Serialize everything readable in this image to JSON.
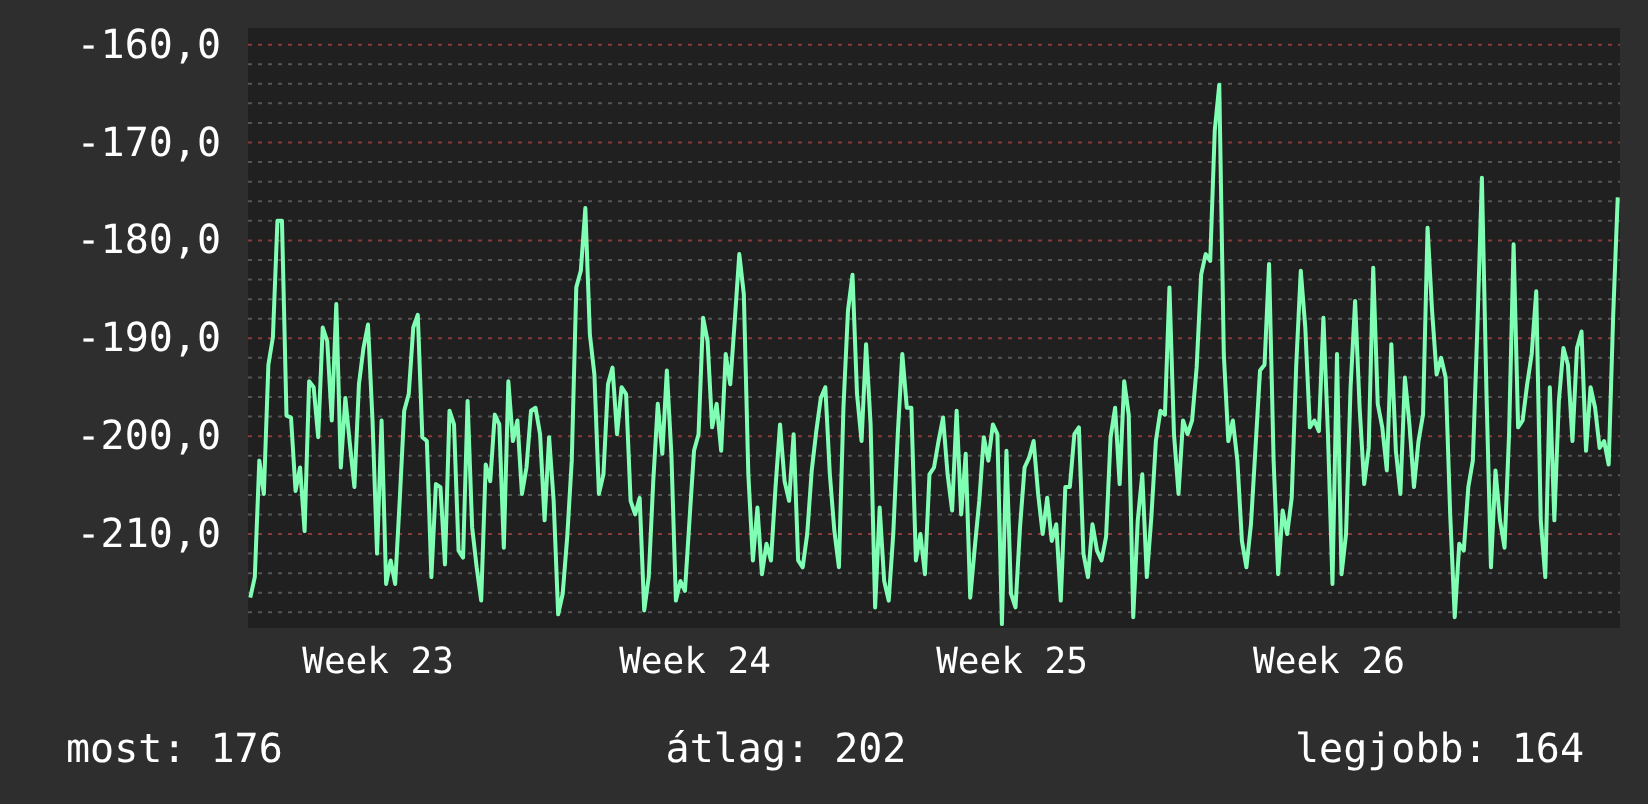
{
  "chart_data": {
    "type": "line",
    "categories": [
      null,
      null,
      null,
      null,
      null,
      null,
      null,
      null,
      null,
      null,
      null,
      null,
      null,
      null,
      null,
      null,
      null,
      null,
      null,
      null,
      null,
      null,
      null,
      null,
      null,
      null,
      null,
      null,
      "Week 23",
      null,
      null,
      null,
      null,
      null,
      null,
      null,
      null,
      null,
      null,
      null,
      null,
      null,
      null,
      null,
      null,
      null,
      null,
      null,
      null,
      null,
      null,
      null,
      null,
      null,
      null,
      null,
      null,
      null,
      null,
      null,
      null,
      null,
      null,
      null,
      null,
      null,
      null,
      null,
      null,
      null,
      null,
      null,
      null,
      null,
      null,
      null,
      null,
      null,
      null,
      null,
      null,
      null,
      null,
      null,
      null,
      null,
      null,
      null,
      null,
      null,
      null,
      null,
      null,
      null,
      null,
      null,
      null,
      null,
      "Week 24",
      null,
      null,
      null,
      null,
      null,
      null,
      null,
      null,
      null,
      null,
      null,
      null,
      null,
      null,
      null,
      null,
      null,
      null,
      null,
      null,
      null,
      null,
      null,
      null,
      null,
      null,
      null,
      null,
      null,
      null,
      null,
      null,
      null,
      null,
      null,
      null,
      null,
      null,
      null,
      null,
      null,
      null,
      null,
      null,
      null,
      null,
      null,
      null,
      null,
      null,
      null,
      null,
      null,
      null,
      null,
      null,
      null,
      null,
      null,
      null,
      null,
      null,
      null,
      null,
      null,
      null,
      null,
      null,
      null,
      "Week 25",
      null,
      null,
      null,
      null,
      null,
      null,
      null,
      null,
      null,
      null,
      null,
      null,
      null,
      null,
      null,
      null,
      null,
      null,
      null,
      null,
      null,
      null,
      null,
      null,
      null,
      null,
      null,
      null,
      null,
      null,
      null,
      null,
      null,
      null,
      null,
      null,
      null,
      null,
      null,
      null,
      null,
      null,
      null,
      null,
      null,
      null,
      null,
      null,
      null,
      null,
      null,
      null,
      null,
      null,
      null,
      null,
      null,
      null,
      null,
      null,
      null,
      null,
      null,
      null,
      null,
      null,
      null,
      null,
      null,
      "Week 26",
      null,
      null,
      null,
      null,
      null,
      null,
      null,
      null,
      null,
      null,
      null,
      null,
      null,
      null,
      null,
      null,
      null,
      null,
      null,
      null,
      null,
      null,
      null,
      null,
      null,
      null,
      null,
      null,
      null,
      null,
      null,
      null,
      null,
      null,
      null,
      null,
      null,
      null,
      null,
      null,
      null,
      null,
      null,
      null,
      null,
      null,
      null,
      null,
      null,
      null,
      null,
      null,
      null,
      null,
      null,
      null,
      null,
      null,
      null,
      null,
      null,
      null,
      null,
      null
    ],
    "series": [
      {
        "color": "#80ffb4",
        "values": [
          -216.5,
          -214.4,
          -202.5,
          -205.9,
          -192.7,
          -189.9,
          -178.0,
          -178.0,
          -197.9,
          -198.1,
          -205.6,
          -203.2,
          -209.7,
          -194.4,
          -195.0,
          -200.1,
          -188.9,
          -190.3,
          -198.4,
          -186.5,
          -203.2,
          -196.1,
          -200.8,
          -205.2,
          -194.7,
          -191.0,
          -188.6,
          -198.4,
          -212.0,
          -198.4,
          -215.1,
          -212.7,
          -215.1,
          -206.6,
          -197.4,
          -195.7,
          -188.9,
          -187.6,
          -200.1,
          -200.5,
          -214.4,
          -204.9,
          -205.2,
          -213.1,
          -197.4,
          -198.8,
          -211.7,
          -212.4,
          -196.4,
          -209.3,
          -213.4,
          -216.8,
          -202.9,
          -204.6,
          -197.8,
          -198.8,
          -211.4,
          -194.4,
          -200.5,
          -198.4,
          -205.9,
          -203.2,
          -197.4,
          -197.1,
          -199.8,
          -208.6,
          -200.1,
          -206.6,
          -218.2,
          -216.1,
          -210.3,
          -202.5,
          -184.8,
          -183.1,
          -176.7,
          -189.6,
          -193.7,
          -205.9,
          -203.9,
          -194.7,
          -193.0,
          -199.8,
          -195.0,
          -195.7,
          -206.6,
          -208.0,
          -206.3,
          -217.8,
          -214.4,
          -204.6,
          -196.7,
          -201.8,
          -193.3,
          -201.8,
          -216.8,
          -214.8,
          -215.8,
          -208.6,
          -201.5,
          -199.8,
          -187.9,
          -190.3,
          -199.1,
          -196.7,
          -201.5,
          -191.6,
          -194.7,
          -188.2,
          -181.4,
          -185.5,
          -203.9,
          -212.7,
          -207.3,
          -214.1,
          -211.0,
          -212.7,
          -205.2,
          -198.8,
          -204.6,
          -206.6,
          -199.8,
          -212.7,
          -213.4,
          -210.0,
          -203.5,
          -199.5,
          -196.1,
          -195.0,
          -203.9,
          -209.7,
          -213.4,
          -197.1,
          -187.2,
          -183.5,
          -195.7,
          -200.5,
          -190.6,
          -198.8,
          -217.5,
          -207.3,
          -214.8,
          -216.8,
          -210.0,
          -199.8,
          -191.6,
          -197.1,
          -197.1,
          -212.7,
          -210.0,
          -214.1,
          -203.9,
          -203.2,
          -200.5,
          -198.1,
          -203.9,
          -207.6,
          -197.4,
          -208.0,
          -201.8,
          -216.5,
          -211.4,
          -206.6,
          -200.1,
          -202.5,
          -198.8,
          -199.8,
          -219.2,
          -201.5,
          -216.1,
          -217.5,
          -209.3,
          -203.2,
          -202.2,
          -200.5,
          -205.9,
          -210.0,
          -206.3,
          -210.7,
          -209.0,
          -216.8,
          -205.2,
          -205.2,
          -199.8,
          -199.1,
          -212.0,
          -214.4,
          -209.0,
          -211.7,
          -212.7,
          -210.3,
          -200.1,
          -197.1,
          -204.9,
          -194.4,
          -197.8,
          -218.5,
          -208.6,
          -203.9,
          -214.4,
          -208.3,
          -200.5,
          -197.4,
          -197.8,
          -184.8,
          -199.8,
          -205.9,
          -198.4,
          -199.8,
          -198.4,
          -193.0,
          -183.5,
          -181.4,
          -182.1,
          -168.8,
          -164.1,
          -191.6,
          -200.5,
          -198.4,
          -202.5,
          -210.7,
          -213.4,
          -209.0,
          -201.2,
          -193.3,
          -192.7,
          -182.4,
          -202.5,
          -214.1,
          -207.6,
          -210.0,
          -206.3,
          -192.7,
          -183.1,
          -188.9,
          -199.1,
          -198.4,
          -199.5,
          -187.9,
          -199.8,
          -215.1,
          -191.6,
          -214.1,
          -210.0,
          -195.0,
          -186.2,
          -197.1,
          -204.9,
          -201.2,
          -182.8,
          -196.7,
          -199.1,
          -203.5,
          -190.6,
          -201.5,
          -205.9,
          -194.0,
          -198.8,
          -205.2,
          -200.5,
          -197.8,
          -178.7,
          -187.2,
          -193.7,
          -192.0,
          -194.0,
          -208.0,
          -218.5,
          -211.0,
          -211.7,
          -205.2,
          -202.5,
          -188.9,
          -173.6,
          -195.4,
          -213.4,
          -203.5,
          -208.6,
          -211.4,
          -199.8,
          -180.4,
          -199.1,
          -198.4,
          -194.7,
          -191.6,
          -185.2,
          -208.6,
          -214.4,
          -195.0,
          -208.6,
          -196.4,
          -191.0,
          -192.7,
          -200.5,
          -191.0,
          -189.3,
          -201.5,
          -195.0,
          -197.1,
          -201.2,
          -200.5,
          -202.9,
          -187.6,
          -175.6
        ]
      }
    ],
    "ylim": [
      -219.6,
      -158.3
    ],
    "yticks": [
      {
        "value": -160,
        "label": "-160,0"
      },
      {
        "value": -170,
        "label": "-170,0"
      },
      {
        "value": -180,
        "label": "-180,0"
      },
      {
        "value": -190,
        "label": "-190,0"
      },
      {
        "value": -200,
        "label": "-200,0"
      },
      {
        "value": -210,
        "label": "-210,0"
      },
      {
        "value": -162,
        "label": null
      },
      {
        "value": -164,
        "label": null
      },
      {
        "value": -166,
        "label": null
      },
      {
        "value": -168,
        "label": null
      },
      {
        "value": -172,
        "label": null
      },
      {
        "value": -174,
        "label": null
      },
      {
        "value": -176,
        "label": null
      },
      {
        "value": -178,
        "label": null
      },
      {
        "value": -182,
        "label": null
      },
      {
        "value": -184,
        "label": null
      },
      {
        "value": -186,
        "label": null
      },
      {
        "value": -188,
        "label": null
      },
      {
        "value": -192,
        "label": null
      },
      {
        "value": -194,
        "label": null
      },
      {
        "value": -196,
        "label": null
      },
      {
        "value": -198,
        "label": null
      },
      {
        "value": -202,
        "label": null
      },
      {
        "value": -204,
        "label": null
      },
      {
        "value": -206,
        "label": null
      },
      {
        "value": -208,
        "label": null
      },
      {
        "value": -212,
        "label": null
      },
      {
        "value": -214,
        "label": null
      },
      {
        "value": -216,
        "label": null
      },
      {
        "value": -218,
        "label": null
      }
    ],
    "grid": "y",
    "marker": "none",
    "line_style": "solid",
    "annotations": [
      "most: 176",
      "átlag: 202",
      "legjobb: 164"
    ]
  }
}
